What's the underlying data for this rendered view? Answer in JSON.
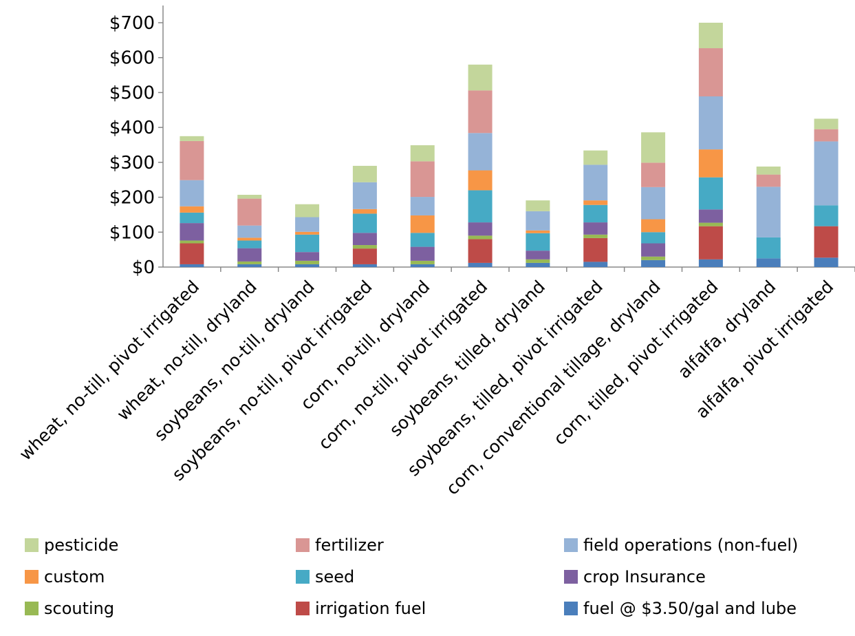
{
  "chart_data": {
    "type": "bar",
    "stacked": true,
    "categories": [
      "wheat, no-till, pivot irrigated",
      "wheat, no-till, dryland",
      "soybeans, no-till, dryland",
      "soybeans, no-till, pivot irrigated",
      "corn, no-till, dryland",
      "corn, no-till, pivot irrigated",
      "soybeans, tilled, dryland",
      "soybeans, tilled, pivot irrigated",
      "corn, conventional tillage, dryland",
      "corn, tilled, pivot irrigated",
      "alfalfa, dryland",
      "alfalfa, pivot irrigated"
    ],
    "ylim": [
      0,
      700
    ],
    "yticks": [
      0,
      100,
      200,
      300,
      400,
      500,
      600,
      700
    ],
    "ytick_labels": [
      "$0",
      "$100",
      "$200",
      "$300",
      "$400",
      "$500",
      "$600",
      "$700"
    ],
    "grid": false,
    "legend_position": "bottom",
    "series": [
      {
        "name": "fuel @ $3.50/gal and lube",
        "color": "#4a7ebb",
        "values": [
          8,
          8,
          8,
          8,
          8,
          12,
          12,
          15,
          20,
          22,
          25,
          27
        ]
      },
      {
        "name": "irrigation fuel",
        "color": "#be4b48",
        "values": [
          60,
          0,
          0,
          45,
          0,
          68,
          0,
          68,
          0,
          95,
          0,
          90
        ]
      },
      {
        "name": "scouting",
        "color": "#98b954",
        "values": [
          8,
          8,
          10,
          10,
          10,
          10,
          10,
          10,
          10,
          10,
          0,
          0
        ]
      },
      {
        "name": "crop Insurance",
        "color": "#7d60a0",
        "values": [
          50,
          38,
          25,
          35,
          40,
          38,
          25,
          35,
          38,
          38,
          0,
          0
        ]
      },
      {
        "name": "seed",
        "color": "#46aac5",
        "values": [
          30,
          22,
          50,
          55,
          40,
          92,
          50,
          50,
          32,
          92,
          60,
          60
        ]
      },
      {
        "name": "custom",
        "color": "#f79646",
        "values": [
          18,
          8,
          8,
          13,
          50,
          57,
          8,
          13,
          37,
          80,
          0,
          0
        ]
      },
      {
        "name": "field operations (non-fuel)",
        "color": "#95b3d7",
        "values": [
          75,
          35,
          42,
          77,
          53,
          107,
          55,
          102,
          92,
          152,
          145,
          183
        ]
      },
      {
        "name": "fertilizer",
        "color": "#d99694",
        "values": [
          112,
          77,
          0,
          0,
          102,
          122,
          0,
          0,
          70,
          138,
          35,
          35
        ]
      },
      {
        "name": "pesticide",
        "color": "#c3d69b",
        "values": [
          14,
          11,
          37,
          47,
          46,
          74,
          31,
          41,
          87,
          73,
          23,
          30
        ]
      }
    ],
    "legend_order": [
      "pesticide",
      "fertilizer",
      "field operations (non-fuel)",
      "custom",
      "seed",
      "crop Insurance",
      "scouting",
      "irrigation fuel",
      "fuel @ $3.50/gal and lube"
    ]
  }
}
